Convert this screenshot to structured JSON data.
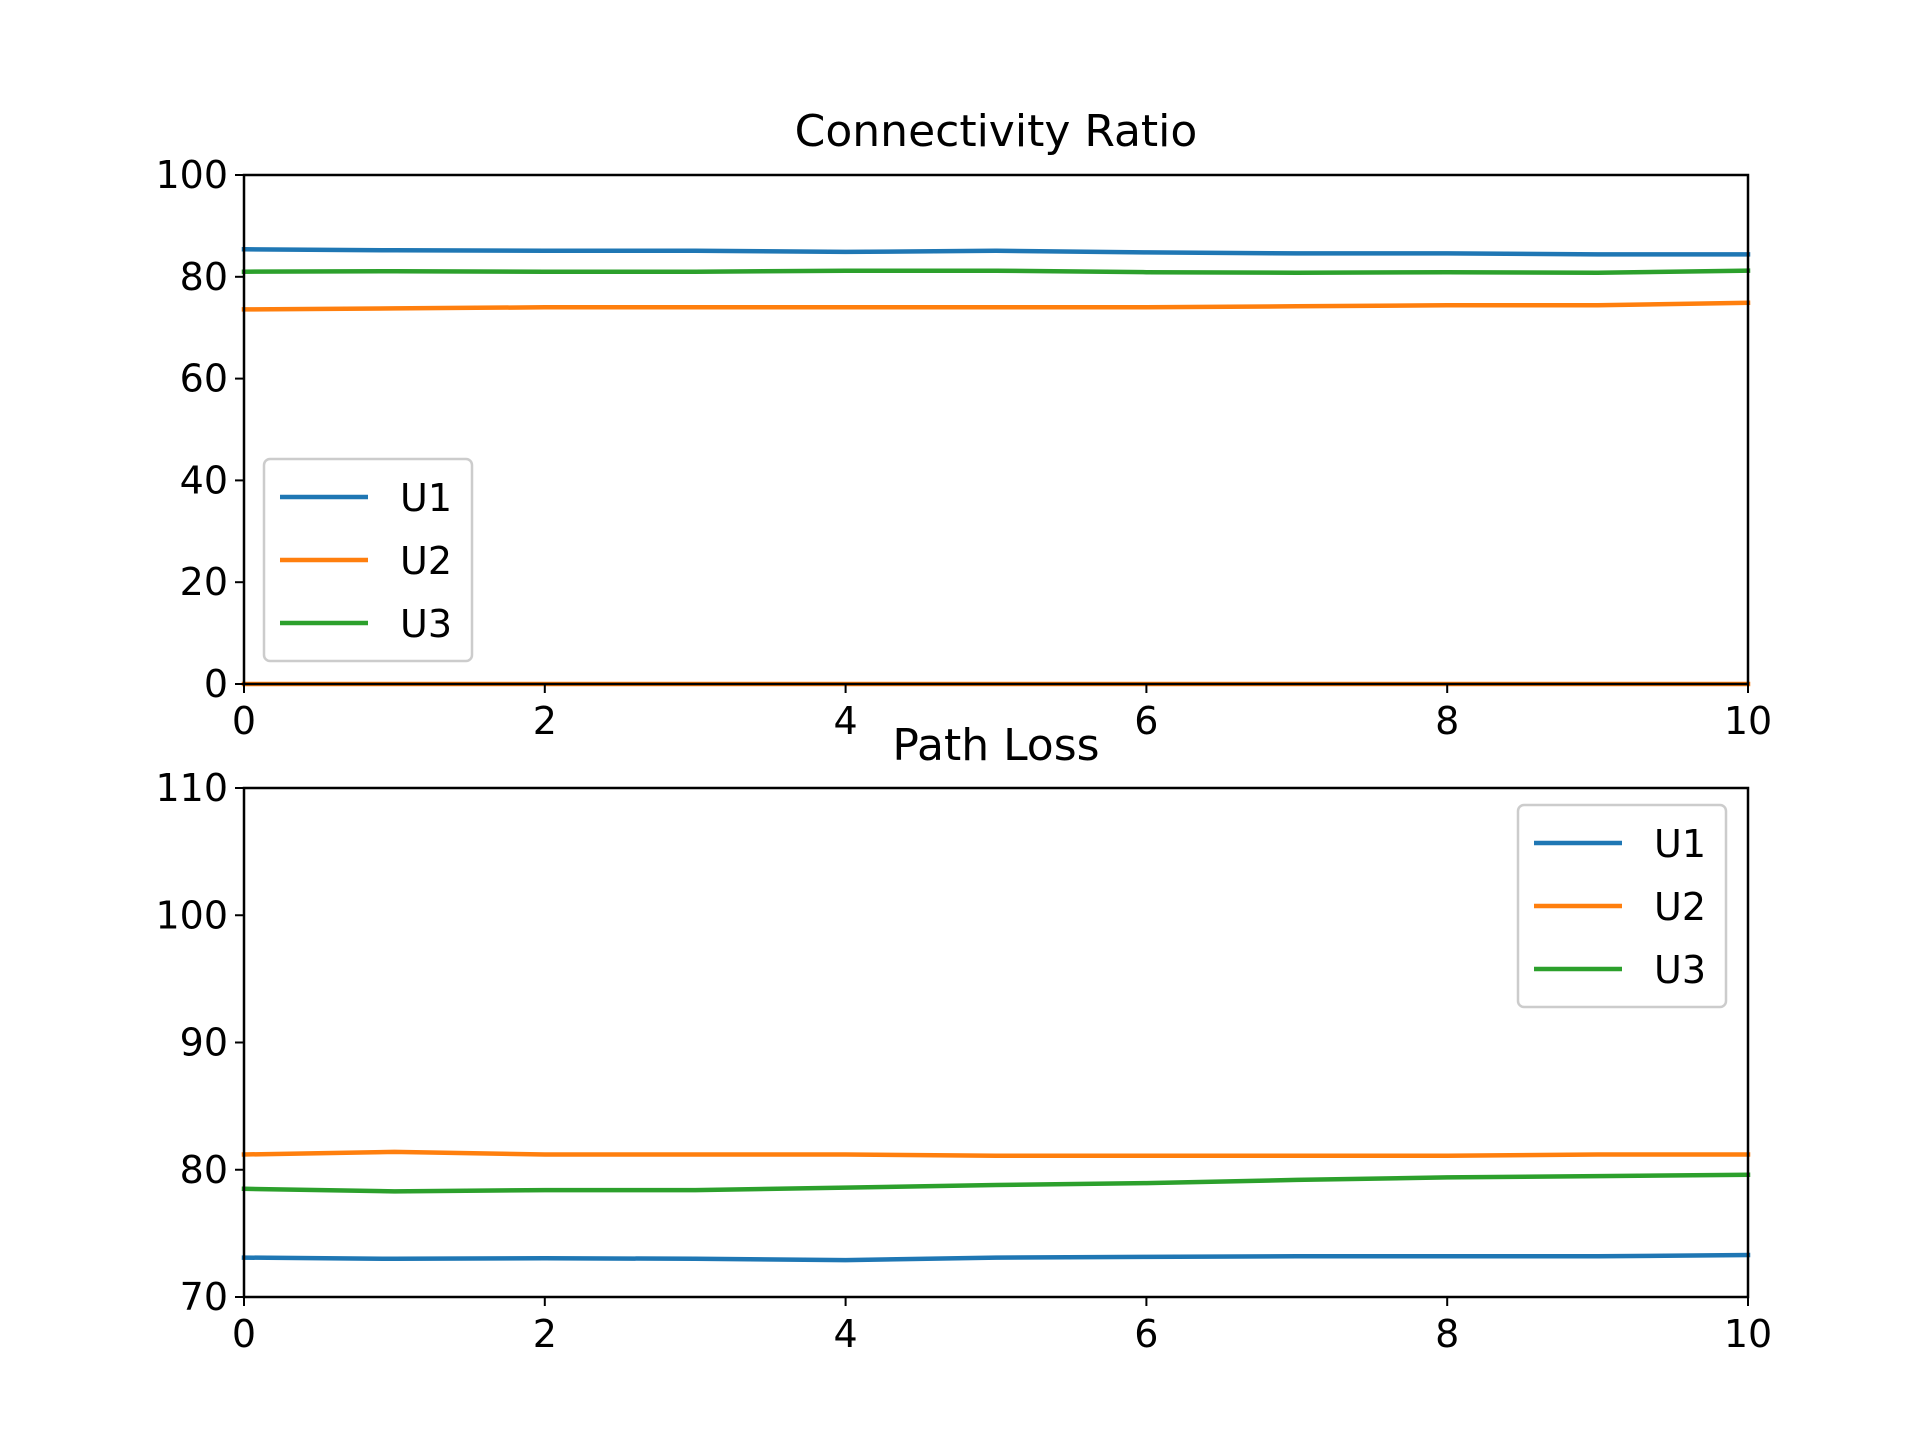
{
  "chart_data": [
    {
      "type": "line",
      "title": "Connectivity Ratio",
      "xlabel": "",
      "ylabel": "",
      "xlim": [
        0,
        10
      ],
      "ylim": [
        0,
        100
      ],
      "xticks": [
        0,
        2,
        4,
        6,
        8,
        10
      ],
      "xtick_labels": [
        "0",
        "2",
        "4",
        "6",
        "8",
        "10"
      ],
      "yticks": [
        0,
        20,
        40,
        60,
        80,
        100
      ],
      "ytick_labels": [
        "0",
        "20",
        "40",
        "60",
        "80",
        "100"
      ],
      "grid": false,
      "legend_position": "center-left",
      "x": [
        0,
        1,
        2,
        3,
        4,
        5,
        6,
        7,
        8,
        9,
        10
      ],
      "series": [
        {
          "name": "U1",
          "color": "#1f77b4",
          "values": [
            85.4,
            85.2,
            85.1,
            85.1,
            84.9,
            85.1,
            84.8,
            84.6,
            84.6,
            84.4,
            84.4
          ]
        },
        {
          "name": "U2",
          "color": "#ff7f0e",
          "values": [
            73.6,
            73.8,
            74.0,
            74.0,
            74.0,
            74.0,
            74.0,
            74.2,
            74.4,
            74.4,
            74.9
          ]
        },
        {
          "name": "U3",
          "color": "#2ca02c",
          "values": [
            81.0,
            81.1,
            81.0,
            81.0,
            81.2,
            81.2,
            80.9,
            80.8,
            80.9,
            80.8,
            81.2
          ]
        }
      ],
      "extra_lines": [
        {
          "color": "#ff7f0e",
          "values": [
            0,
            0,
            0,
            0,
            0,
            0,
            0,
            0,
            0,
            0,
            0
          ]
        }
      ]
    },
    {
      "type": "line",
      "title": "Path Loss",
      "xlabel": "",
      "ylabel": "",
      "xlim": [
        0,
        10
      ],
      "ylim": [
        70,
        110
      ],
      "xticks": [
        0,
        2,
        4,
        6,
        8,
        10
      ],
      "xtick_labels": [
        "0",
        "2",
        "4",
        "6",
        "8",
        "10"
      ],
      "yticks": [
        70,
        80,
        90,
        100,
        110
      ],
      "ytick_labels": [
        "70",
        "80",
        "90",
        "100",
        "110"
      ],
      "grid": false,
      "legend_position": "upper-right",
      "x": [
        0,
        1,
        2,
        3,
        4,
        5,
        6,
        7,
        8,
        9,
        10
      ],
      "series": [
        {
          "name": "U1",
          "color": "#1f77b4",
          "values": [
            73.1,
            73.0,
            73.05,
            73.0,
            72.9,
            73.1,
            73.15,
            73.2,
            73.2,
            73.2,
            73.3
          ]
        },
        {
          "name": "U2",
          "color": "#ff7f0e",
          "values": [
            81.2,
            81.4,
            81.2,
            81.2,
            81.2,
            81.1,
            81.1,
            81.1,
            81.1,
            81.2,
            81.2
          ]
        },
        {
          "name": "U3",
          "color": "#2ca02c",
          "values": [
            78.5,
            78.3,
            78.4,
            78.4,
            78.6,
            78.8,
            78.95,
            79.2,
            79.4,
            79.5,
            79.6
          ]
        }
      ],
      "extra_lines": []
    }
  ]
}
